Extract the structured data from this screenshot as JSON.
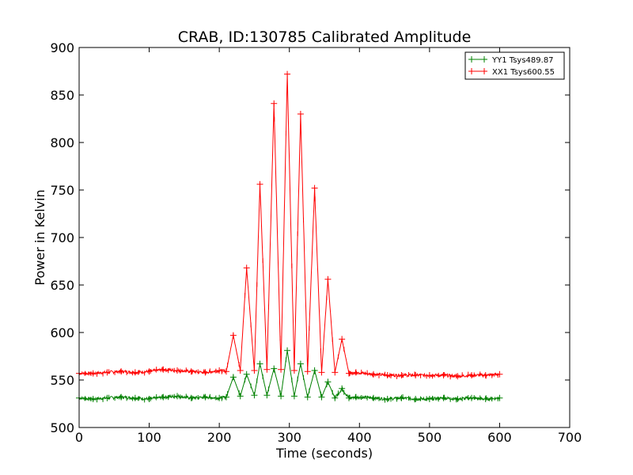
{
  "chart_data": {
    "type": "line",
    "title": "CRAB, ID:130785 Calibrated Amplitude",
    "xlabel": "Time (seconds)",
    "ylabel": "Power in Kelvin",
    "xlim": [
      0,
      700
    ],
    "ylim": [
      500,
      900
    ],
    "x_ticks": [
      "0",
      "100",
      "200",
      "300",
      "400",
      "500",
      "600",
      "700"
    ],
    "y_ticks": [
      "500",
      "550",
      "600",
      "650",
      "700",
      "750",
      "800",
      "850",
      "900"
    ],
    "grid": false,
    "legend_position": "top-right",
    "marker": "plus",
    "series": [
      {
        "name": "YY1 Tsys489.87",
        "color": "#008000",
        "baseline": 531,
        "x": [
          0,
          20,
          40,
          60,
          80,
          100,
          120,
          140,
          160,
          180,
          200,
          210,
          220,
          230,
          239,
          250,
          258,
          268,
          278,
          288,
          297,
          307,
          316,
          326,
          336,
          346,
          355,
          365,
          375,
          385,
          395,
          420,
          440,
          460,
          480,
          500,
          520,
          540,
          560,
          580,
          600
        ],
        "y": [
          531,
          530,
          531,
          532,
          531,
          530,
          532,
          533,
          531,
          532,
          531,
          532,
          553,
          533,
          556,
          534,
          567,
          534,
          562,
          533,
          581,
          533,
          567,
          532,
          560,
          532,
          548,
          531,
          541,
          531,
          532,
          531,
          530,
          531,
          530,
          530,
          531,
          530,
          531,
          530,
          531
        ]
      },
      {
        "name": "XX1 Tsys600.55",
        "color": "#ff0000",
        "baseline": 557,
        "x": [
          0,
          20,
          40,
          60,
          80,
          100,
          120,
          140,
          160,
          180,
          200,
          210,
          220,
          230,
          239,
          250,
          258,
          268,
          278,
          288,
          297,
          307,
          316,
          326,
          336,
          346,
          355,
          365,
          375,
          385,
          395,
          420,
          440,
          460,
          480,
          500,
          520,
          540,
          560,
          580,
          600
        ],
        "y": [
          557,
          557,
          558,
          559,
          558,
          559,
          561,
          560,
          559,
          558,
          560,
          559,
          597,
          560,
          668,
          560,
          756,
          561,
          841,
          561,
          872,
          560,
          830,
          559,
          752,
          558,
          656,
          558,
          593,
          557,
          558,
          556,
          555,
          555,
          555,
          555,
          555,
          554,
          555,
          555,
          556
        ]
      }
    ]
  }
}
